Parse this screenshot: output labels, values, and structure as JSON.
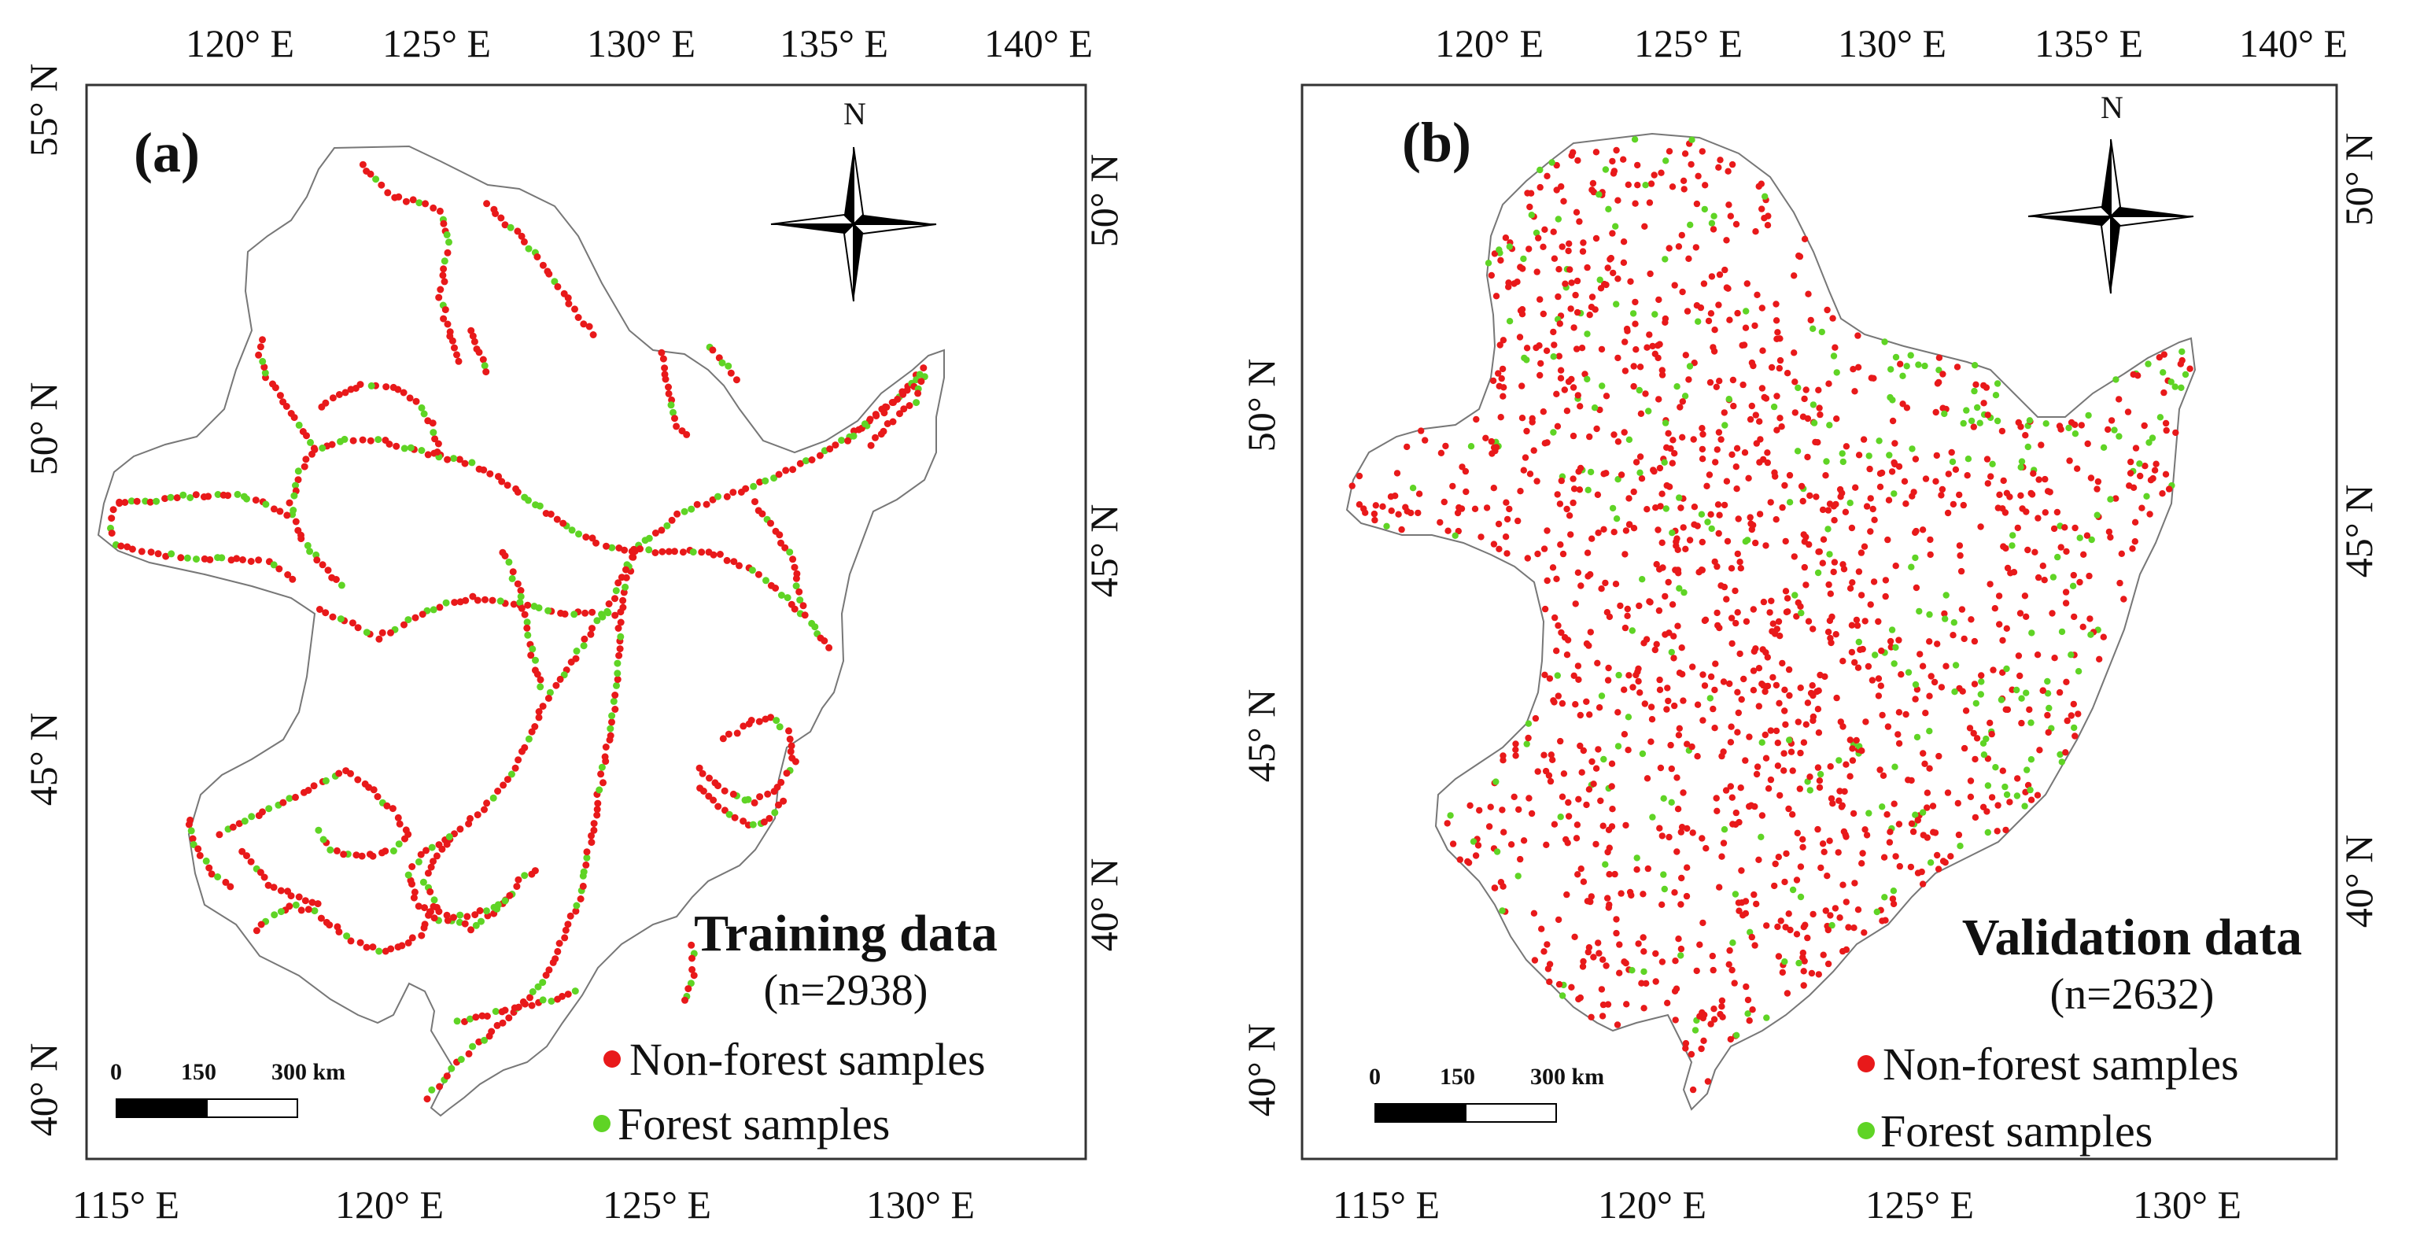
{
  "colors": {
    "non_forest": "#e8191a",
    "forest": "#5fd425"
  },
  "panels": [
    {
      "label": "(a)",
      "title": "Training data",
      "count": "(n=2938)",
      "legend": {
        "non_forest": "Non-forest samples",
        "forest": "Forest samples"
      },
      "north": "N",
      "scale": {
        "l0": "0",
        "l1": "150",
        "l2": "300 km"
      },
      "top_ticks": [
        "120° E",
        "125° E",
        "130° E",
        "135° E",
        "140° E"
      ],
      "bottom_ticks": [
        "115° E",
        "120° E",
        "125° E",
        "130° E"
      ],
      "left_ticks": [
        "55° N",
        "50° N",
        "45° N",
        "40° N"
      ],
      "right_ticks": [
        "50° N",
        "45° N",
        "40° N"
      ]
    },
    {
      "label": "(b)",
      "title": "Validation data",
      "count": "(n=2632)",
      "legend": {
        "non_forest": "Non-forest samples",
        "forest": "Forest samples"
      },
      "north": "N",
      "scale": {
        "l0": "0",
        "l1": "150",
        "l2": "300 km"
      },
      "top_ticks": [
        "120° E",
        "125° E",
        "130° E",
        "135° E",
        "140° E"
      ],
      "bottom_ticks": [
        "115° E",
        "120° E",
        "125° E",
        "130° E"
      ],
      "left_ticks": [
        "50° N",
        "45° N",
        "40° N"
      ],
      "right_ticks": [
        "50° N",
        "45° N",
        "40° N"
      ]
    }
  ]
}
